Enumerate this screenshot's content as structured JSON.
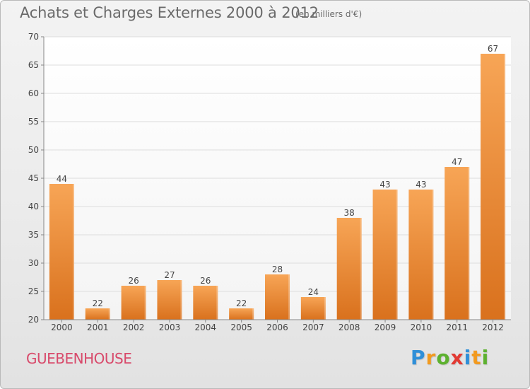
{
  "title": "Achats et Charges Externes 2000 à 2012",
  "subtitle": "(en milliers d'€)",
  "commune": "GUEBENHOUSE",
  "brand": {
    "letters": [
      "P",
      "r",
      "o",
      "x",
      "i",
      "t",
      "i"
    ],
    "colors": [
      "#2f8fd8",
      "#f29a1f",
      "#5db12f",
      "#e23a33",
      "#2f8fd8",
      "#f29a1f",
      "#5db12f"
    ]
  },
  "colors": {
    "bar_light": "#f7a556",
    "bar_dark": "#d9711d",
    "axis": "#888888",
    "grid": "#dddddd",
    "label": "#444444"
  },
  "chart_data": {
    "type": "bar",
    "categories": [
      "2000",
      "2001",
      "2002",
      "2003",
      "2004",
      "2005",
      "2006",
      "2007",
      "2008",
      "2009",
      "2010",
      "2011",
      "2012"
    ],
    "values": [
      44,
      22,
      26,
      27,
      26,
      22,
      28,
      24,
      38,
      43,
      43,
      47,
      67
    ],
    "data_labels": [
      "44",
      "22",
      "26",
      "27",
      "26",
      "22",
      "28",
      "24",
      "38",
      "43",
      "43",
      "47",
      "67"
    ],
    "ylim": [
      20,
      70
    ],
    "yticks": [
      20,
      25,
      30,
      35,
      40,
      45,
      50,
      55,
      60,
      65,
      70
    ],
    "ytick_labels": [
      "20",
      "25",
      "30",
      "35",
      "40",
      "45",
      "50",
      "55",
      "60",
      "65",
      "70"
    ],
    "grid": true,
    "xlabel": "",
    "ylabel": ""
  }
}
